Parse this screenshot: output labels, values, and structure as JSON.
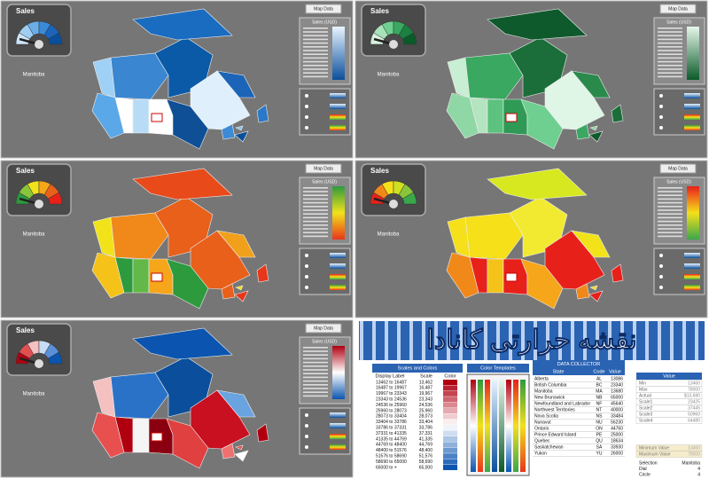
{
  "panels": [
    {
      "gauge_title": "Sales",
      "selection": "Manitoba",
      "button": "Map Data",
      "legend_title": "Sales (USD)"
    },
    {
      "gauge_title": "Sales",
      "selection": "Manitoba",
      "button": "Map Data",
      "legend_title": "Sales (USD)"
    },
    {
      "gauge_title": "Sales",
      "selection": "Manitoba",
      "button": "Map Data",
      "legend_title": "Sales (USD)"
    },
    {
      "gauge_title": "Sales",
      "selection": "Manitoba",
      "button": "Map Data",
      "legend_title": "Sales (USD)"
    },
    {
      "gauge_title": "Sales",
      "selection": "Manitoba",
      "button": "Map Data",
      "legend_title": "Sales (USD)"
    }
  ],
  "title": "نقشه حرارتی کانادا",
  "scales": {
    "title": "Scales and Colors",
    "headers": [
      "Display Label",
      "Scale",
      "Color"
    ],
    "rows": [
      [
        "13462 to 16487",
        "13,462"
      ],
      [
        "16487 to 19967",
        "16,487"
      ],
      [
        "19967 to 23343",
        "19,967"
      ],
      [
        "23343 to 24536",
        "23,343"
      ],
      [
        "24536 to 25960",
        "24,536"
      ],
      [
        "25960 to 28073",
        "25,960"
      ],
      [
        "28073 to 33404",
        "28,073"
      ],
      [
        "33404 to 33786",
        "33,404"
      ],
      [
        "33786 to 37331",
        "33,786"
      ],
      [
        "37331 to 41335",
        "37,331"
      ],
      [
        "41335 to 44769",
        "41,335"
      ],
      [
        "44769 to 48400",
        "44,769"
      ],
      [
        "48400 to 51576",
        "48,400"
      ],
      [
        "51576 to 58690",
        "51,576"
      ],
      [
        "58690 to 65000",
        "58,690"
      ],
      [
        "65000 to +",
        "65,000"
      ]
    ]
  },
  "templates_title": "Color Templates",
  "collector": {
    "title": "DATA COLLECTOR",
    "headers": [
      "State",
      "Code",
      "Value"
    ],
    "rows": [
      [
        "Alberta",
        "AL",
        "13086"
      ],
      [
        "British Columbia",
        "BC",
        "23340"
      ],
      [
        "Manitoba",
        "MA",
        "13680"
      ],
      [
        "New Brunswick",
        "NB",
        "65000"
      ],
      [
        "Newfoundland and Labrador",
        "NF",
        "45640"
      ],
      [
        "Northwest Territories",
        "NT",
        "40000"
      ],
      [
        "Nova Scotia",
        "NS",
        "33484"
      ],
      [
        "Nunavut",
        "NU",
        "56230"
      ],
      [
        "Ontario",
        "ON",
        "44760"
      ],
      [
        "Prince Edward Island",
        "PE",
        "25000"
      ],
      [
        "Quebec",
        "QU",
        "18634"
      ],
      [
        "Saskatchewan",
        "SA",
        "33930"
      ],
      [
        "Yukon",
        "YU",
        "26000"
      ]
    ]
  },
  "summary": {
    "header": "Value",
    "rows": [
      [
        "Min",
        "13460"
      ],
      [
        "Max",
        "78000"
      ],
      [
        "Actual",
        "$13,680"
      ],
      [
        "Scale1",
        "23425"
      ],
      [
        "Scale2",
        "37445"
      ],
      [
        "Scale3",
        "50960"
      ],
      [
        "Scale4",
        "64480"
      ]
    ],
    "minimum": [
      "Minimum Value",
      "13460"
    ],
    "maximum": [
      "Maximum Value",
      "78000"
    ],
    "selection": [
      [
        "Selection",
        "Manitoba"
      ],
      [
        "Dial",
        "4"
      ],
      [
        "Circle",
        "4"
      ]
    ]
  }
}
